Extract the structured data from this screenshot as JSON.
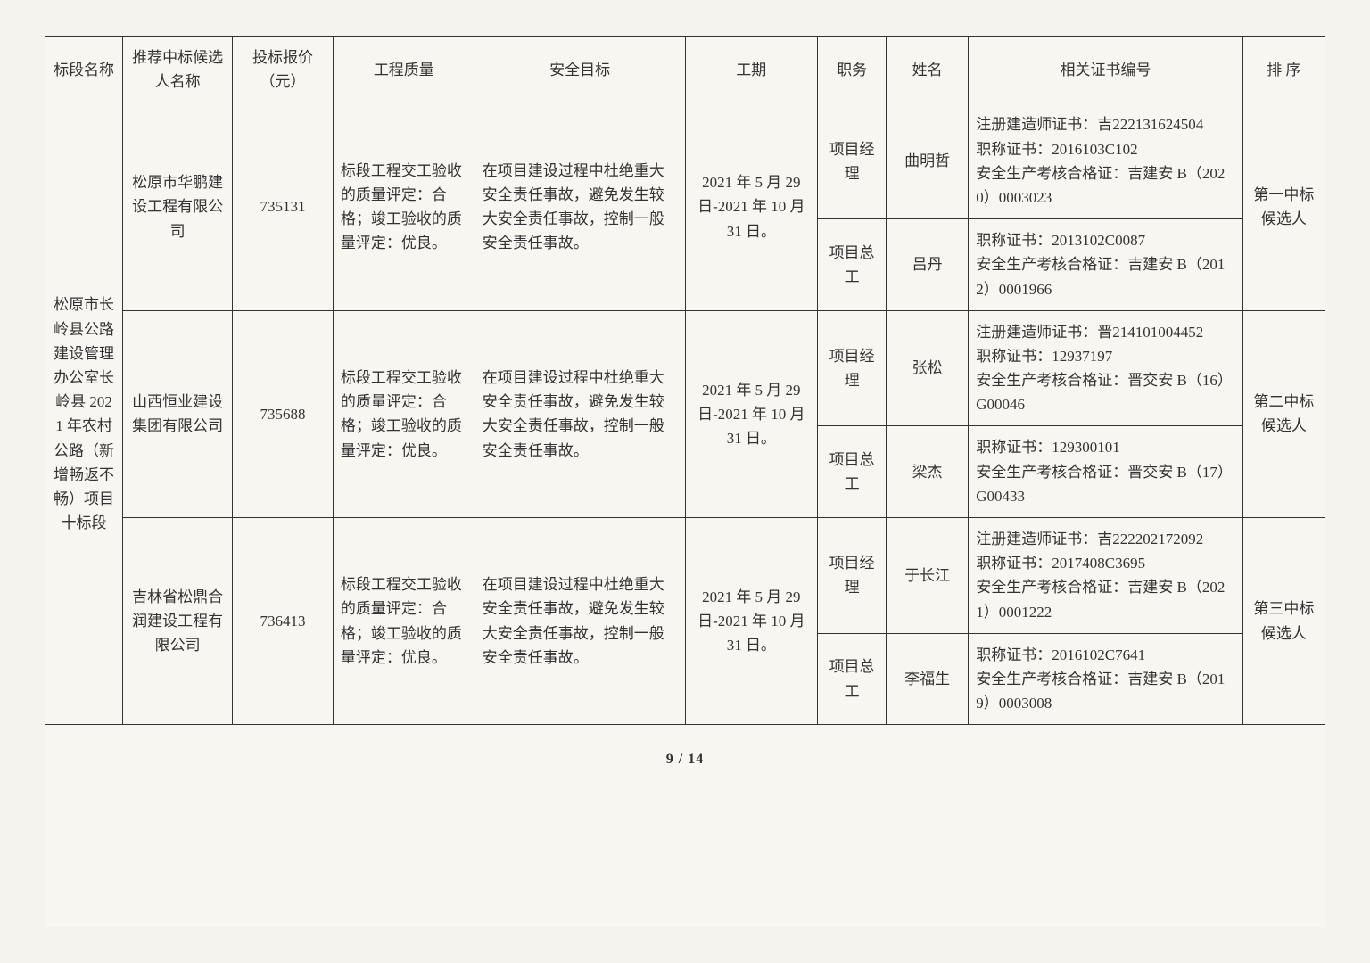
{
  "headers": {
    "section": "标段名称",
    "candidate": "推荐中标候选人名称",
    "bid": "投标报价（元）",
    "quality": "工程质量",
    "safety": "安全目标",
    "period": "工期",
    "role": "职务",
    "name": "姓名",
    "cert": "相关证书编号",
    "rank": "排 序"
  },
  "section_name": "松原市长岭县公路建设管理办公室长岭县 2021 年农村公路（新增畅返不畅）项目十标段",
  "bidders": [
    {
      "candidate": "松原市华鹏建设工程有限公司",
      "bid": "735131",
      "quality": "标段工程交工验收的质量评定：合格；竣工验收的质量评定：优良。",
      "safety": "在项目建设过程中杜绝重大安全责任事故，避免发生较大安全责任事故，控制一般安全责任事故。",
      "period": "2021 年 5 月 29 日-2021 年 10 月 31 日。",
      "rank": "第一中标候选人",
      "staff": [
        {
          "role": "项目经理",
          "name": "曲明哲",
          "cert": "注册建造师证书：吉222131624504\n职称证书：2016103C102\n安全生产考核合格证：吉建安 B（2020）0003023"
        },
        {
          "role": "项目总工",
          "name": "吕丹",
          "cert": "职称证书：2013102C0087\n安全生产考核合格证：吉建安 B（2012）0001966"
        }
      ]
    },
    {
      "candidate": "山西恒业建设集团有限公司",
      "bid": "735688",
      "quality": "标段工程交工验收的质量评定：合格；竣工验收的质量评定：优良。",
      "safety": "在项目建设过程中杜绝重大安全责任事故，避免发生较大安全责任事故，控制一般安全责任事故。",
      "period": "2021 年 5 月 29 日-2021 年 10 月 31 日。",
      "rank": "第二中标候选人",
      "staff": [
        {
          "role": "项目经理",
          "name": "张松",
          "cert": "注册建造师证书：晋214101004452\n职称证书：12937197\n安全生产考核合格证：晋交安 B（16）G00046"
        },
        {
          "role": "项目总工",
          "name": "梁杰",
          "cert": "职称证书：129300101\n安全生产考核合格证：晋交安 B（17）G00433"
        }
      ]
    },
    {
      "candidate": "吉林省松鼎合润建设工程有限公司",
      "bid": "736413",
      "quality": "标段工程交工验收的质量评定：合格；竣工验收的质量评定：优良。",
      "safety": "在项目建设过程中杜绝重大安全责任事故，避免发生较大安全责任事故，控制一般安全责任事故。",
      "period": "2021 年 5 月 29 日-2021 年 10 月 31 日。",
      "rank": "第三中标候选人",
      "staff": [
        {
          "role": "项目经理",
          "name": "于长江",
          "cert": "注册建造师证书：吉222202172092\n职称证书：2017408C3695\n安全生产考核合格证：吉建安 B（2021）0001222"
        },
        {
          "role": "项目总工",
          "name": "李福生",
          "cert": "职称证书：2016102C7641\n安全生产考核合格证：吉建安 B（2019）0003008"
        }
      ]
    }
  ],
  "footer": "9 / 14"
}
